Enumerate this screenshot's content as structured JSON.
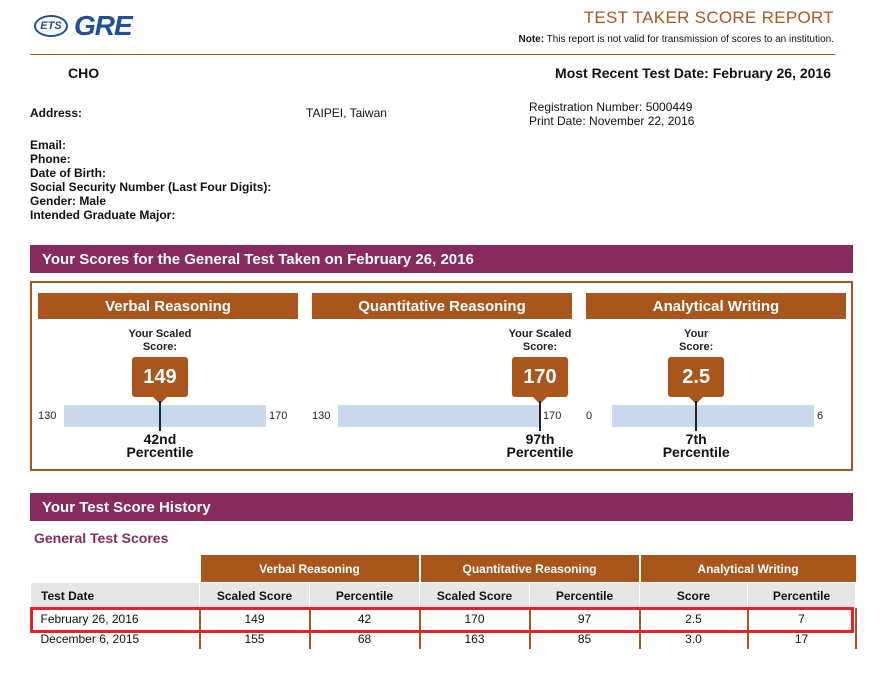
{
  "header": {
    "logo_ets": "ETS",
    "logo_gre": "GRE",
    "title": "TEST TAKER SCORE REPORT",
    "note_label": "Note:",
    "note_text": "This report is not valid for transmission of scores to an institution."
  },
  "candidate": {
    "name": "CHO",
    "recent_date": "Most Recent Test Date: February 26, 2016",
    "address_label": "Address:",
    "address_value": "TAIPEI, Taiwan",
    "registration": "Registration Number: 5000449",
    "print_date": "Print Date: November 22, 2016",
    "email_label": "Email:",
    "phone_label": "Phone:",
    "dob_label": "Date of Birth:",
    "ssn_label": "Social Security Number (Last Four Digits):",
    "gender_label": "Gender: Male",
    "major_label": "Intended Graduate Major:"
  },
  "scores_section": {
    "title": "Your Scores for the General Test Taken on February 26, 2016",
    "cards": [
      {
        "name": "Verbal Reasoning",
        "label_line1": "Your Scaled",
        "label_line2": "Score:",
        "score": "149",
        "min": "130",
        "max": "170",
        "level": 0.475,
        "pct_line1": "42nd",
        "pct_line2": "Percentile"
      },
      {
        "name": "Quantitative Reasoning",
        "label_line1": "Your Scaled",
        "label_line2": "Score:",
        "score": "170",
        "min": "130",
        "max": "170",
        "level": 1.0,
        "pct_line1": "97th",
        "pct_line2": "Percentile"
      },
      {
        "name": "Analytical Writing",
        "label_line1": "Your",
        "label_line2": "Score:",
        "score": "2.5",
        "min": "0",
        "max": "6",
        "level": 0.4167,
        "pct_line1": "7th",
        "pct_line2": "Percentile"
      }
    ]
  },
  "history": {
    "title": "Your Test Score History",
    "subtitle": "General Test Scores",
    "groups": [
      "Verbal Reasoning",
      "Quantitative Reasoning",
      "Analytical Writing"
    ],
    "columns": [
      "Test Date",
      "Scaled Score",
      "Percentile",
      "Scaled Score",
      "Percentile",
      "Score",
      "Percentile"
    ],
    "rows": [
      [
        "February 26, 2016",
        "149",
        "42",
        "170",
        "97",
        "2.5",
        "7"
      ],
      [
        "December 6, 2015",
        "155",
        "68",
        "163",
        "85",
        "3.0",
        "17"
      ]
    ]
  },
  "colors": {
    "brand_blue": "#1f4e9a",
    "section_bar": "#862b5c",
    "accent_brown": "#a9561d",
    "track_blue": "#c8d9ec",
    "highlight_red": "#e4222b"
  }
}
